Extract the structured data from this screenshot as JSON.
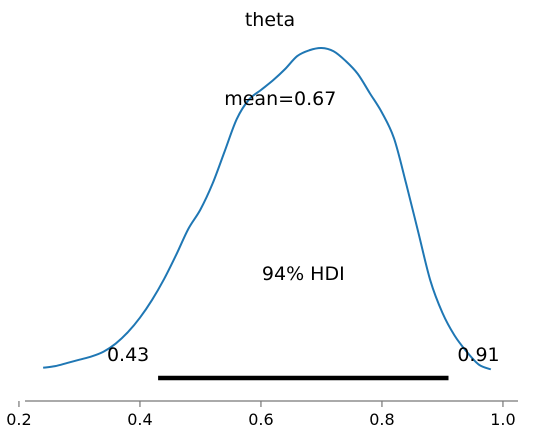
{
  "chart_data": {
    "type": "area",
    "title": "theta",
    "xlabel": "",
    "ylabel": "",
    "xlim": [
      0.21,
      1.01
    ],
    "ylim": [
      0,
      1
    ],
    "grid": false,
    "legend": "none",
    "line_color": "#1f77b4",
    "hdi_color": "#000000",
    "x_ticks": [
      0.2,
      0.4,
      0.6,
      0.8,
      1.0
    ],
    "x_tick_labels": [
      "0.2",
      "0.4",
      "0.6",
      "0.8",
      "1.0"
    ],
    "density": {
      "x": [
        0.24,
        0.26,
        0.28,
        0.3,
        0.32,
        0.34,
        0.36,
        0.38,
        0.4,
        0.42,
        0.44,
        0.46,
        0.48,
        0.5,
        0.52,
        0.54,
        0.56,
        0.58,
        0.6,
        0.62,
        0.64,
        0.66,
        0.68,
        0.7,
        0.72,
        0.74,
        0.76,
        0.78,
        0.8,
        0.82,
        0.84,
        0.86,
        0.88,
        0.9,
        0.92,
        0.94,
        0.96,
        0.98
      ],
      "y": [
        0.01,
        0.015,
        0.025,
        0.035,
        0.045,
        0.06,
        0.085,
        0.12,
        0.165,
        0.22,
        0.285,
        0.36,
        0.44,
        0.5,
        0.58,
        0.68,
        0.78,
        0.84,
        0.87,
        0.9,
        0.935,
        0.975,
        0.993,
        1.0,
        0.99,
        0.96,
        0.92,
        0.86,
        0.8,
        0.72,
        0.58,
        0.43,
        0.28,
        0.18,
        0.11,
        0.06,
        0.02,
        0.005
      ]
    },
    "mean": {
      "value": 0.67,
      "label": "mean=0.67"
    },
    "hdi": {
      "prob_label": "94% HDI",
      "low": 0.43,
      "high": 0.91,
      "low_label": "0.43",
      "high_label": "0.91"
    }
  }
}
